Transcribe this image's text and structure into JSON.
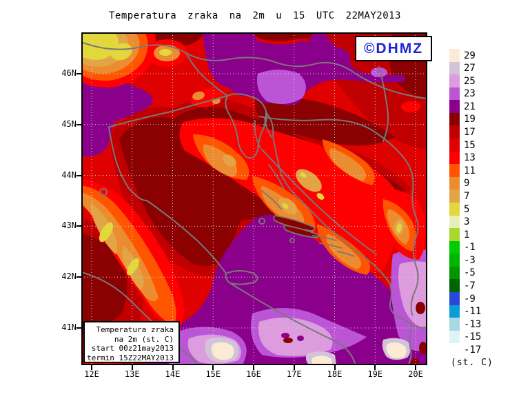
{
  "title": {
    "text": "Temperatura zraka na 2m u 15 UTC 22MAY2013"
  },
  "watermark": {
    "label": "©DHMZ",
    "color": "#2121D6"
  },
  "legend_box": {
    "lines": [
      "Temperatura zraka",
      "na 2m (st. C)",
      "start 00z21may2013",
      "termin 15Z22MAY2013"
    ]
  },
  "axes": {
    "lat_ticks": [
      "46N",
      "45N",
      "44N",
      "43N",
      "42N",
      "41N"
    ],
    "lon_ticks": [
      "12E",
      "13E",
      "14E",
      "15E",
      "16E",
      "17E",
      "18E",
      "19E",
      "20E"
    ]
  },
  "colorbar": {
    "unit_label": "(st. C)",
    "entries": [
      {
        "label": "29",
        "color": "#FCEBD4"
      },
      {
        "label": "27",
        "color": "#D3C3DA"
      },
      {
        "label": "25",
        "color": "#DC9CDE"
      },
      {
        "label": "23",
        "color": "#BC54D6"
      },
      {
        "label": "21",
        "color": "#8B008B"
      },
      {
        "label": "19",
        "color": "#8B0000"
      },
      {
        "label": "17",
        "color": "#C00000"
      },
      {
        "label": "15",
        "color": "#DF0000"
      },
      {
        "label": "13",
        "color": "#FF0000"
      },
      {
        "label": "11",
        "color": "#FF5500"
      },
      {
        "label": "9",
        "color": "#EC8C30"
      },
      {
        "label": "7",
        "color": "#E2A444"
      },
      {
        "label": "5",
        "color": "#E2D83C"
      },
      {
        "label": "3",
        "color": "#E9EDBC"
      },
      {
        "label": "1",
        "color": "#AAD82D"
      },
      {
        "label": "-1",
        "color": "#00CC00"
      },
      {
        "label": "-3",
        "color": "#00B400"
      },
      {
        "label": "-5",
        "color": "#009600"
      },
      {
        "label": "-7",
        "color": "#006400"
      },
      {
        "label": "-9",
        "color": "#2848D8"
      },
      {
        "label": "-11",
        "color": "#0A9CD8"
      },
      {
        "label": "-13",
        "color": "#A8D8E4"
      },
      {
        "label": "-15",
        "color": "#DFF3F5"
      },
      {
        "label": "-17",
        "color": "#FFFFFF"
      }
    ]
  },
  "palette": {
    "t29": "#FCEBD4",
    "t27": "#D3C3DA",
    "t25": "#DC9CDE",
    "t23": "#BC54D6",
    "t21": "#8B008B",
    "t19": "#8B0000",
    "t17": "#C00000",
    "t15": "#DF0000",
    "t13": "#FF0000",
    "t11": "#FF5500",
    "t9": "#EC8C30",
    "t7": "#E2A444",
    "t5": "#E2D83C"
  },
  "line_colors": {
    "coast": "#787878",
    "grid": "#D8D8D8",
    "frame": "#000000"
  }
}
